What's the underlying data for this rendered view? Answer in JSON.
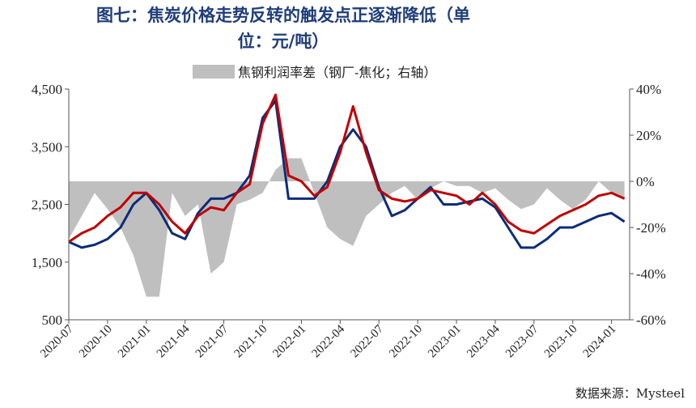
{
  "page": {
    "title_line1": "图七：焦炭价格走势反转的触发点正逐渐降低（单",
    "title_line2": "位：元/吨）",
    "source": "数据来源：Mysteel"
  },
  "colors": {
    "coke_price": "#c00000",
    "coking_coal_price": "#0b2c7a",
    "profit_diff_area": "#bfbfbf"
  },
  "chart_data": {
    "type": "line",
    "title": "图七：焦炭价格走势反转的触发点正逐渐降低（单位：元/吨）",
    "x_ticks": [
      "2020-07",
      "2020-10",
      "2021-01",
      "2021-04",
      "2021-07",
      "2021-10",
      "2022-01",
      "2022-04",
      "2022-07",
      "2022-10",
      "2023-01",
      "2023-04",
      "2023-07",
      "2023-10",
      "2024-01"
    ],
    "left_axis": {
      "ylim": [
        500,
        4500
      ],
      "ticks": [
        "4,500",
        "3,500",
        "2,500",
        "1,500",
        "500"
      ]
    },
    "right_axis": {
      "ylim": [
        -60,
        40
      ],
      "ticks": [
        "40%",
        "20%",
        "0%",
        "-20%",
        "-40%",
        "-60%"
      ]
    },
    "x": [
      "2020-07",
      "2020-08",
      "2020-09",
      "2020-10",
      "2020-11",
      "2020-12",
      "2021-01",
      "2021-02",
      "2021-03",
      "2021-04",
      "2021-05",
      "2021-06",
      "2021-07",
      "2021-08",
      "2021-09",
      "2021-10",
      "2021-11",
      "2021-12",
      "2022-01",
      "2022-02",
      "2022-03",
      "2022-04",
      "2022-05",
      "2022-06",
      "2022-07",
      "2022-08",
      "2022-09",
      "2022-10",
      "2022-11",
      "2022-12",
      "2023-01",
      "2023-02",
      "2023-03",
      "2023-04",
      "2023-05",
      "2023-06",
      "2023-07",
      "2023-08",
      "2023-09",
      "2023-10",
      "2023-11",
      "2023-12",
      "2024-01",
      "2024-02"
    ],
    "series": [
      {
        "name": "",
        "axis": "left",
        "values": [
          1850,
          2000,
          2100,
          2300,
          2450,
          2700,
          2700,
          2500,
          2200,
          2000,
          2300,
          2450,
          2400,
          2700,
          2850,
          3900,
          4400,
          3000,
          2900,
          2650,
          2800,
          3400,
          4200,
          3400,
          2750,
          2600,
          2550,
          2600,
          2750,
          2700,
          2650,
          2500,
          2700,
          2500,
          2200,
          2050,
          2000,
          2150,
          2300,
          2400,
          2500,
          2650,
          2700,
          2600
        ]
      },
      {
        "name": "",
        "axis": "left",
        "values": [
          1850,
          1750,
          1800,
          1900,
          2100,
          2500,
          2700,
          2400,
          2000,
          1900,
          2350,
          2600,
          2600,
          2700,
          3000,
          4000,
          4300,
          2600,
          2600,
          2600,
          2900,
          3500,
          3800,
          3500,
          2800,
          2300,
          2400,
          2600,
          2800,
          2500,
          2500,
          2550,
          2600,
          2450,
          2100,
          1750,
          1750,
          1900,
          2100,
          2100,
          2200,
          2300,
          2350,
          2200
        ]
      },
      {
        "name": "焦钢利润率差（钢厂-焦化；右轴）",
        "axis": "right",
        "type": "area",
        "values": [
          -25,
          -15,
          -5,
          -12,
          -20,
          -32,
          -50,
          -50,
          -5,
          -15,
          -10,
          -40,
          -35,
          -10,
          -8,
          -5,
          5,
          10,
          10,
          -5,
          -20,
          -25,
          -28,
          -15,
          -10,
          -5,
          -2,
          -8,
          -3,
          0,
          -2,
          -2,
          -5,
          -3,
          -8,
          -12,
          -10,
          -3,
          -8,
          -12,
          -8,
          0,
          -5,
          -8
        ]
      }
    ],
    "legend": [
      "焦钢利润率差（钢厂-焦化；右轴）"
    ],
    "legend_position": "top",
    "grid": false
  }
}
